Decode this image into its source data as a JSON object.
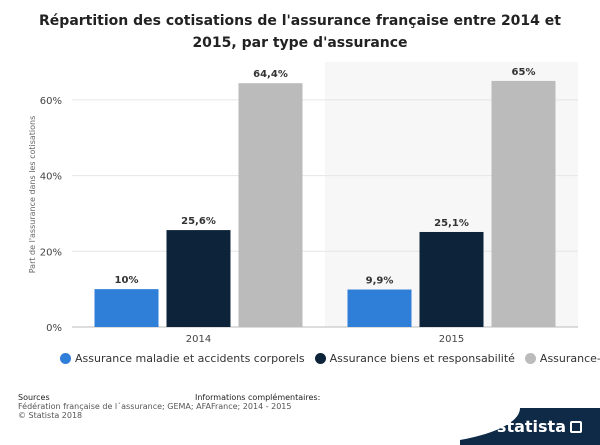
{
  "chart_data": {
    "type": "bar",
    "title": "Répartition des cotisations de l'assurance française entre 2014 et 2015, par type d'assurance",
    "ylabel": "Part de l'assurance dans les cotisations",
    "ylim": [
      0,
      70
    ],
    "yticks": [
      "0%",
      "20%",
      "40%",
      "60%"
    ],
    "grid": true,
    "legend_position": "bottom",
    "categories": [
      "2014",
      "2015"
    ],
    "series": [
      {
        "name": "Assurance maladie et accidents corporels",
        "color": "#2f7ed8",
        "values": [
          10,
          9.9
        ],
        "labels": [
          "10%",
          "9,9%"
        ]
      },
      {
        "name": "Assurance biens et responsabilité",
        "color": "#0d233a",
        "values": [
          25.6,
          25.1
        ],
        "labels": [
          "25,6%",
          "25,1%"
        ]
      },
      {
        "name": "Assurance-vie",
        "color": "#bbbbbb",
        "values": [
          64.4,
          65
        ],
        "labels": [
          "64,4%",
          "65%"
        ]
      }
    ]
  },
  "footer": {
    "sources_heading": "Sources",
    "sources_text": "Fédération française de l´assurance; GEMA; AFAFrance; 2014 - 2015",
    "copyright": "© Statista 2018",
    "info_heading": "Informations complémentaires:"
  },
  "brand": {
    "name": "statista"
  }
}
